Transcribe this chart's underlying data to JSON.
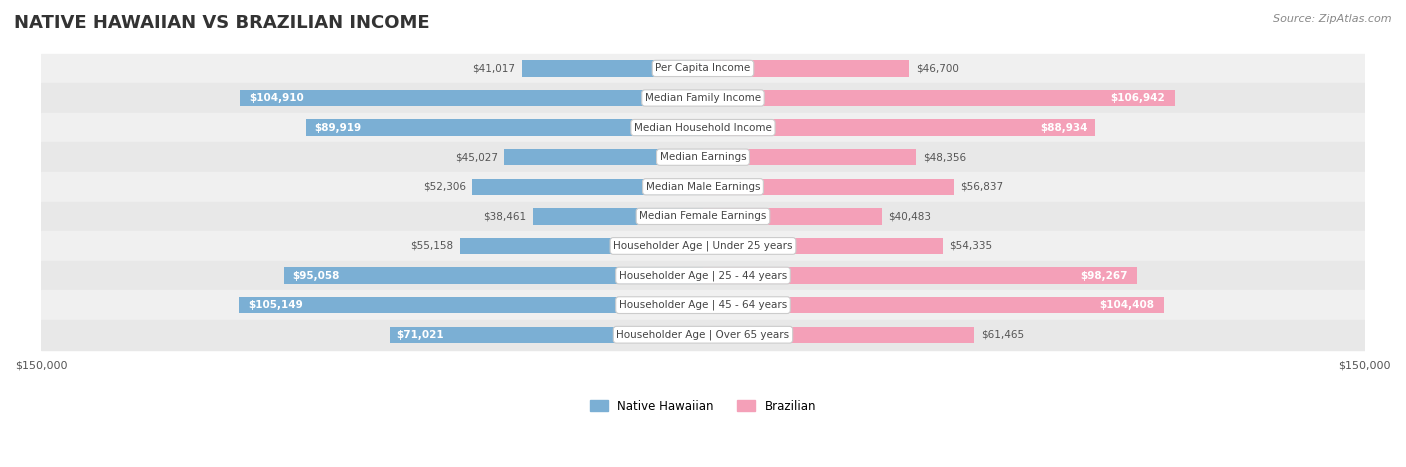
{
  "title": "NATIVE HAWAIIAN VS BRAZILIAN INCOME",
  "source": "Source: ZipAtlas.com",
  "categories": [
    "Per Capita Income",
    "Median Family Income",
    "Median Household Income",
    "Median Earnings",
    "Median Male Earnings",
    "Median Female Earnings",
    "Householder Age | Under 25 years",
    "Householder Age | 25 - 44 years",
    "Householder Age | 45 - 64 years",
    "Householder Age | Over 65 years"
  ],
  "native_hawaiian": [
    41017,
    104910,
    89919,
    45027,
    52306,
    38461,
    55158,
    95058,
    105149,
    71021
  ],
  "brazilian": [
    46700,
    106942,
    88934,
    48356,
    56837,
    40483,
    54335,
    98267,
    104408,
    61465
  ],
  "native_hawaiian_labels": [
    "$41,017",
    "$104,910",
    "$89,919",
    "$45,027",
    "$52,306",
    "$38,461",
    "$55,158",
    "$95,058",
    "$105,149",
    "$71,021"
  ],
  "brazilian_labels": [
    "$46,700",
    "$106,942",
    "$88,934",
    "$48,356",
    "$56,837",
    "$40,483",
    "$54,335",
    "$98,267",
    "$104,408",
    "$61,465"
  ],
  "max_value": 150000,
  "color_hawaiian": "#7bafd4",
  "color_hawaiian_dark": "#5a9ac0",
  "color_brazilian": "#f4a0b8",
  "color_brazilian_dark": "#e87099",
  "color_label_box": "#f5f5f5",
  "background_color": "#ffffff",
  "row_bg_light": "#f9f9f9",
  "row_bg_dark": "#eeeeee",
  "bar_height": 0.55,
  "figsize": [
    14.06,
    4.67
  ],
  "dpi": 100
}
